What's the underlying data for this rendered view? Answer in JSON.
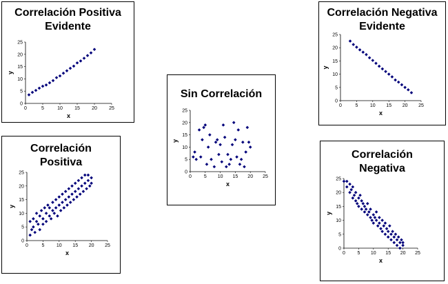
{
  "chart_data": [
    {
      "id": "cpe",
      "type": "scatter",
      "title": "Correlación Positiva Evidente",
      "title_lines": [
        "Correlación Positiva",
        "Evidente"
      ],
      "xlabel": "x",
      "ylabel": "y",
      "xlim": [
        0,
        25
      ],
      "ylim": [
        0,
        25
      ],
      "xticks": [
        0,
        5,
        10,
        15,
        20,
        25
      ],
      "yticks": [
        0,
        5,
        10,
        15,
        20,
        25
      ],
      "color": "#00007a",
      "x": [
        1,
        2,
        3,
        4,
        5,
        6,
        7,
        8,
        9,
        10,
        11,
        12,
        13,
        14,
        15,
        16,
        17,
        18,
        19,
        20
      ],
      "y": [
        3.5,
        4.5,
        5.3,
        6.2,
        7,
        7.5,
        8.4,
        9.3,
        10.5,
        11.2,
        12.3,
        13.3,
        14.3,
        15.2,
        16.5,
        17.3,
        18.4,
        19.5,
        20.6,
        22
      ]
    },
    {
      "id": "cp",
      "type": "scatter",
      "title": "Correlación Positiva",
      "title_lines": [
        "Correlación",
        "Positiva"
      ],
      "xlabel": "x",
      "ylabel": "y",
      "xlim": [
        0,
        25
      ],
      "ylim": [
        0,
        25
      ],
      "xticks": [
        0,
        5,
        10,
        15,
        20,
        25
      ],
      "yticks": [
        0,
        5,
        10,
        15,
        20,
        25
      ],
      "color": "#00007a",
      "x": [
        1,
        1,
        1.5,
        2,
        2,
        2.5,
        3,
        3,
        3.5,
        4,
        4,
        4.5,
        5,
        5,
        5.5,
        6,
        6,
        6.5,
        7,
        7,
        7.5,
        8,
        8,
        8.5,
        9,
        9,
        9.5,
        10,
        10,
        10.5,
        11,
        11,
        11.5,
        12,
        12,
        12.5,
        13,
        13,
        13.5,
        14,
        14,
        14.5,
        15,
        15,
        15.5,
        16,
        16,
        16.5,
        17,
        17,
        17.5,
        18,
        18,
        18.5,
        19,
        19,
        19.5,
        20,
        20
      ],
      "y": [
        2,
        7,
        4,
        5,
        8,
        3,
        7,
        10,
        6,
        4,
        9,
        11,
        6,
        8,
        12,
        7,
        10,
        13,
        9,
        12,
        8,
        11,
        14,
        10,
        12,
        15,
        9,
        13,
        16,
        11,
        14,
        17,
        12,
        15,
        18,
        13,
        16,
        19,
        14,
        17,
        20,
        15,
        18,
        21,
        16,
        19,
        22,
        17,
        20,
        23,
        18,
        21,
        24,
        19,
        22,
        24,
        20,
        23,
        21
      ]
    },
    {
      "id": "sc",
      "type": "scatter",
      "title": "Sin Correlación",
      "title_lines": [
        "Sin Correlación"
      ],
      "xlabel": "x",
      "ylabel": "y",
      "xlim": [
        0,
        25
      ],
      "ylim": [
        0,
        25
      ],
      "xticks": [
        0,
        5,
        10,
        15,
        20,
        25
      ],
      "yticks": [
        0,
        5,
        10,
        15,
        20,
        25
      ],
      "color": "#00007a",
      "x": [
        1,
        1.5,
        2,
        3,
        3.5,
        4,
        4.5,
        5,
        5.5,
        6,
        6.5,
        7,
        8,
        8.5,
        9,
        9.5,
        10,
        10.5,
        11,
        11.5,
        12,
        12.5,
        13,
        13.5,
        14,
        14.5,
        15,
        15.5,
        16,
        16.5,
        17,
        17.5,
        18,
        18.5,
        19,
        19.5,
        20
      ],
      "y": [
        6,
        8,
        5,
        17,
        6,
        13,
        18,
        19,
        3,
        10,
        15,
        5,
        2,
        12,
        13,
        7,
        11,
        4,
        19,
        14,
        2,
        7,
        3,
        5,
        11,
        20,
        13,
        6,
        17,
        3,
        5,
        12,
        2,
        8,
        18,
        12,
        10
      ]
    },
    {
      "id": "cne",
      "type": "scatter",
      "title": "Correlación Negativa Evidente",
      "title_lines": [
        "Correlación Negativa",
        "Evidente"
      ],
      "xlabel": "x",
      "ylabel": "y",
      "xlim": [
        0,
        25
      ],
      "ylim": [
        0,
        25
      ],
      "xticks": [
        0,
        5,
        10,
        15,
        20,
        25
      ],
      "yticks": [
        0,
        5,
        10,
        15,
        20,
        25
      ],
      "color": "#00007a",
      "x": [
        3,
        4,
        5,
        6,
        7,
        8,
        9,
        10,
        11,
        12,
        13,
        14,
        15,
        16,
        17,
        18,
        19,
        20,
        21,
        22
      ],
      "y": [
        22.5,
        21.2,
        20.2,
        19.2,
        18.3,
        17.4,
        16.2,
        15.2,
        14.1,
        13,
        12,
        11,
        10,
        9,
        7.8,
        7,
        6,
        5,
        4.1,
        3
      ]
    },
    {
      "id": "cn",
      "type": "scatter",
      "title": "Correlación Negativa",
      "title_lines": [
        "Correlación",
        "Negativa"
      ],
      "xlabel": "x",
      "ylabel": "y",
      "xlim": [
        0,
        25
      ],
      "ylim": [
        0,
        25
      ],
      "xticks": [
        0,
        5,
        10,
        15,
        20,
        25
      ],
      "yticks": [
        0,
        5,
        10,
        15,
        20,
        25
      ],
      "color": "#00007a",
      "x": [
        0,
        1,
        1,
        2,
        2,
        2.5,
        3,
        3,
        3.5,
        4,
        4,
        4.5,
        5,
        5,
        5.5,
        6,
        6,
        6.5,
        7,
        7,
        7.5,
        8,
        8,
        8.5,
        9,
        9,
        9.5,
        10,
        10,
        10.5,
        11,
        11,
        11.5,
        12,
        12,
        12.5,
        13,
        13,
        13.5,
        14,
        14,
        14.5,
        15,
        15,
        15.5,
        16,
        16,
        16.5,
        17,
        17,
        17.5,
        18,
        18,
        18.5,
        19,
        19,
        19.5,
        20,
        20
      ],
      "y": [
        24,
        22,
        24,
        20,
        23,
        21,
        18,
        22,
        19,
        17,
        20,
        16,
        18,
        15,
        19,
        14,
        17,
        16,
        13,
        15,
        14,
        12,
        16,
        13,
        11,
        14,
        10,
        12,
        9,
        11,
        10,
        13,
        8,
        11,
        9,
        7,
        10,
        6,
        8,
        9,
        5,
        7,
        6,
        4,
        8,
        5,
        3,
        6,
        4,
        2,
        5,
        3,
        1,
        4,
        2,
        0,
        3,
        1,
        2
      ]
    }
  ]
}
